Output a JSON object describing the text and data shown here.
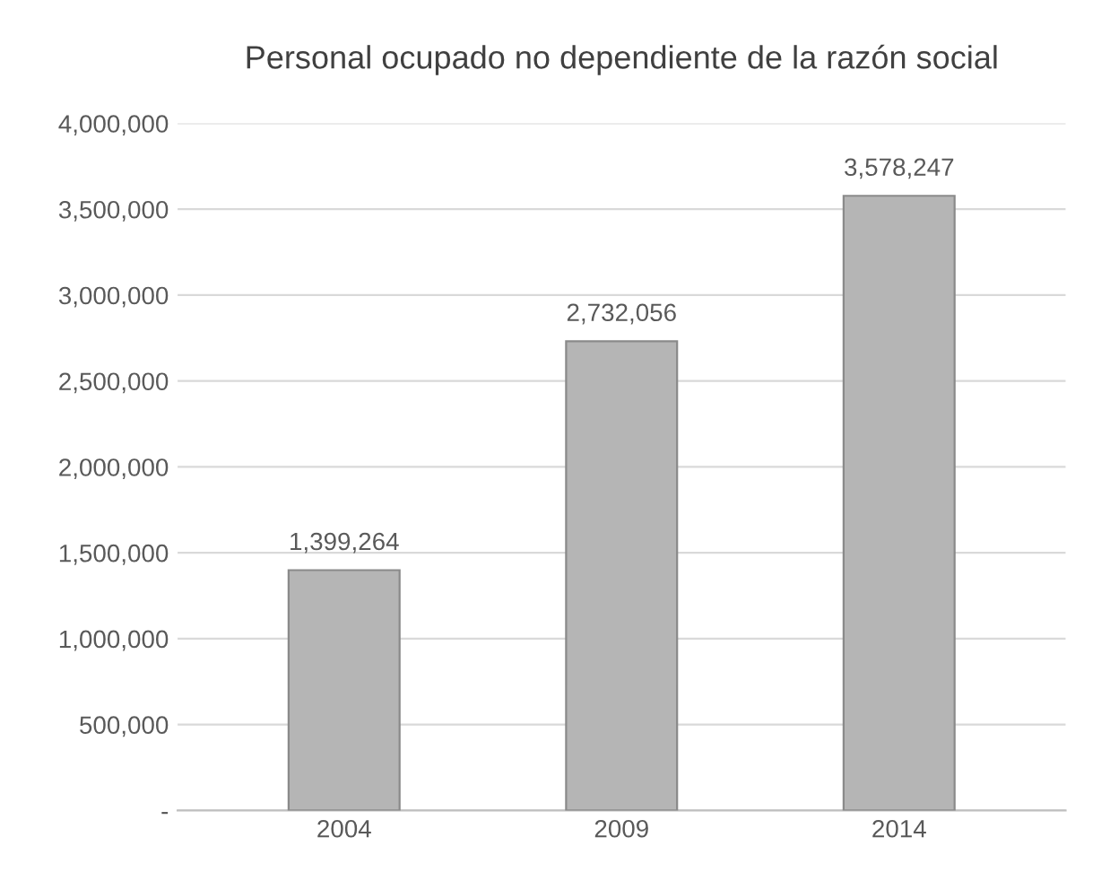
{
  "chart_data": {
    "type": "bar",
    "title": "Personal ocupado no dependiente de la razón social",
    "categories": [
      "2004",
      "2009",
      "2014"
    ],
    "values": [
      1399264,
      2732056,
      3578247
    ],
    "value_labels": [
      "1,399,264",
      "2,732,056",
      "3,578,247"
    ],
    "color": "#b5b5b5",
    "ylim": [
      0,
      4000000
    ],
    "yticks": [
      {
        "value": 0,
        "label": "-"
      },
      {
        "value": 500000,
        "label": "500,000"
      },
      {
        "value": 1000000,
        "label": "1,000,000"
      },
      {
        "value": 1500000,
        "label": "1,500,000"
      },
      {
        "value": 2000000,
        "label": "2,000,000"
      },
      {
        "value": 2500000,
        "label": "2,500,000"
      },
      {
        "value": 3000000,
        "label": "3,000,000"
      },
      {
        "value": 3500000,
        "label": "3,500,000"
      },
      {
        "value": 4000000,
        "label": "4,000,000"
      }
    ],
    "grid": "y"
  }
}
